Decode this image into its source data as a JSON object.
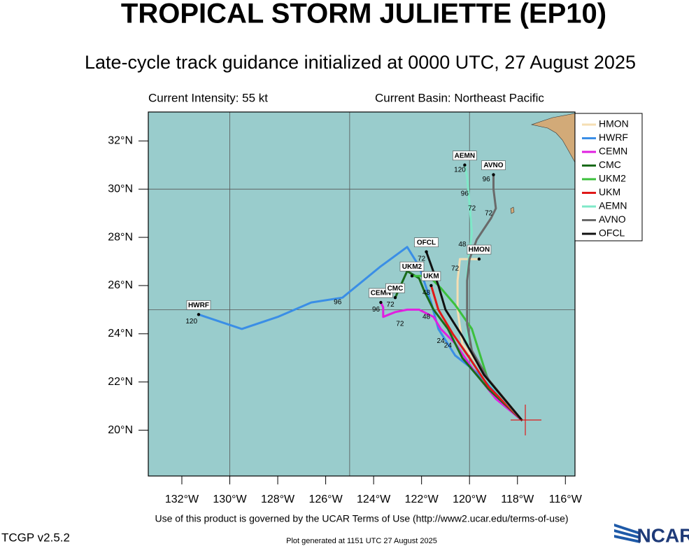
{
  "chart_data": {
    "type": "line",
    "title": "TROPICAL STORM JULIETTE (EP10)",
    "subtitle": "Late-cycle track guidance initialized at 0000 UTC, 27 August 2025",
    "intensity": "Current Intensity: 55 kt",
    "basin": "Current Basin: Northeast Pacific",
    "xlim": [
      -133.4,
      -115.6
    ],
    "ylim": [
      18.1,
      33.2
    ],
    "xticks": [
      {
        "value": -132,
        "label": "132°W"
      },
      {
        "value": -130,
        "label": "130°W"
      },
      {
        "value": -128,
        "label": "128°W"
      },
      {
        "value": -126,
        "label": "126°W"
      },
      {
        "value": -124,
        "label": "124°W"
      },
      {
        "value": -122,
        "label": "122°W"
      },
      {
        "value": -120,
        "label": "120°W"
      },
      {
        "value": -118,
        "label": "118°W"
      },
      {
        "value": -116,
        "label": "116°W"
      }
    ],
    "yticks": [
      {
        "value": 20,
        "label": "20°N"
      },
      {
        "value": 22,
        "label": "22°N"
      },
      {
        "value": 24,
        "label": "24°N"
      },
      {
        "value": 26,
        "label": "26°N"
      },
      {
        "value": 28,
        "label": "28°N"
      },
      {
        "value": 30,
        "label": "30°N"
      },
      {
        "value": 32,
        "label": "32°N"
      }
    ],
    "xgrid": [
      -130,
      -125,
      -120
    ],
    "ygrid": [
      25,
      30
    ],
    "series": [
      {
        "name": "HMON",
        "color": "#f5deb3",
        "x": [
          -117.8,
          -119.2,
          -120.3,
          -120.5,
          -120.5,
          -120.4,
          -119.6
        ],
        "values": [
          20.4,
          22.1,
          23.6,
          25.0,
          26.2,
          27.1,
          27.1
        ]
      },
      {
        "name": "HWRF",
        "color": "#3a8ee6",
        "x": [
          -117.8,
          -119.7,
          -120.6,
          -121.3,
          -121.6,
          -122.1,
          -122.6,
          -123.7,
          -125.3,
          -126.6,
          -128.0,
          -129.5,
          -131.3
        ],
        "values": [
          20.4,
          22.4,
          23.1,
          24.2,
          25.3,
          26.8,
          27.6,
          26.8,
          25.5,
          25.3,
          24.7,
          24.2,
          24.8
        ]
      },
      {
        "name": "CEMN",
        "color": "#e020e0",
        "x": [
          -117.8,
          -118.9,
          -119.7,
          -120.6,
          -121.2,
          -121.5,
          -122.1,
          -122.6,
          -123.1,
          -123.6,
          -123.6,
          -123.7
        ],
        "values": [
          20.4,
          21.3,
          22.3,
          23.6,
          24.2,
          24.7,
          25.0,
          25.0,
          24.9,
          24.7,
          25.1,
          25.3
        ]
      },
      {
        "name": "CMC",
        "color": "#1a6b1a",
        "x": [
          -117.8,
          -119.2,
          -120.3,
          -120.9,
          -121.5,
          -121.9,
          -122.1,
          -122.6,
          -123.1
        ],
        "values": [
          20.4,
          21.7,
          23.0,
          24.2,
          25.0,
          25.8,
          26.3,
          26.6,
          25.5
        ]
      },
      {
        "name": "UKM2",
        "color": "#3cc03c",
        "x": [
          -117.8,
          -119.2,
          -119.9,
          -120.6,
          -121.2,
          -121.7,
          -122.4
        ],
        "values": [
          20.4,
          22.0,
          24.2,
          25.2,
          25.9,
          26.4,
          26.4
        ]
      },
      {
        "name": "UKM",
        "color": "#e01818",
        "x": [
          -117.8,
          -119.2,
          -120.0,
          -120.7,
          -121.3,
          -121.6
        ],
        "values": [
          20.4,
          21.8,
          23.0,
          24.0,
          25.0,
          26.0
        ]
      },
      {
        "name": "AEMN",
        "color": "#7fe8c8",
        "x": [
          -117.8,
          -119.2,
          -120.1,
          -120.1,
          -120.1,
          -119.9,
          -120.0,
          -120.1,
          -120.2
        ],
        "values": [
          20.4,
          22.0,
          23.6,
          25.0,
          26.5,
          28.2,
          29.4,
          30.5,
          31.0
        ]
      },
      {
        "name": "AVNO",
        "color": "#6a6a6a",
        "x": [
          -117.8,
          -119.2,
          -119.9,
          -120.1,
          -120.1,
          -120.0,
          -119.7,
          -119.1,
          -118.9,
          -119.0,
          -119.0
        ],
        "values": [
          20.4,
          22.1,
          23.3,
          24.4,
          26.2,
          27.1,
          27.9,
          28.8,
          29.2,
          30.0,
          30.6
        ]
      },
      {
        "name": "OFCL",
        "color": "#111111",
        "x": [
          -117.8,
          -119.4,
          -120.3,
          -121.0,
          -121.3,
          -121.8
        ],
        "values": [
          20.4,
          22.3,
          23.9,
          25.0,
          26.0,
          27.4
        ]
      }
    ],
    "hour_labels": [
      {
        "text": "120",
        "lon": -131.6,
        "lat": 24.5
      },
      {
        "text": "96",
        "lon": -125.5,
        "lat": 25.3
      },
      {
        "text": "72",
        "lon": -123.3,
        "lat": 25.2
      },
      {
        "text": "96",
        "lon": -123.9,
        "lat": 25.0
      },
      {
        "text": "72",
        "lon": -122.9,
        "lat": 24.4
      },
      {
        "text": "48",
        "lon": -121.8,
        "lat": 24.7
      },
      {
        "text": "72",
        "lon": -122.0,
        "lat": 27.1
      },
      {
        "text": "48",
        "lon": -121.8,
        "lat": 25.7
      },
      {
        "text": "24",
        "lon": -121.2,
        "lat": 23.7
      },
      {
        "text": "24",
        "lon": -120.9,
        "lat": 23.5
      },
      {
        "text": "72",
        "lon": -120.6,
        "lat": 26.7
      },
      {
        "text": "48",
        "lon": -120.3,
        "lat": 27.7
      },
      {
        "text": "72",
        "lon": -119.9,
        "lat": 29.2
      },
      {
        "text": "96",
        "lon": -120.2,
        "lat": 29.8
      },
      {
        "text": "120",
        "lon": -120.4,
        "lat": 30.8
      },
      {
        "text": "96",
        "lon": -119.3,
        "lat": 30.4
      },
      {
        "text": "72",
        "lon": -119.2,
        "lat": 29.0
      }
    ],
    "terms": "Use of this product is governed by the UCAR Terms of Use (http://www2.ucar.edu/terms-of-use)",
    "version": "TCGP v2.5.2",
    "generated": "Plot generated at 1151 UTC   27 August 2025",
    "logo": "NCAR"
  }
}
